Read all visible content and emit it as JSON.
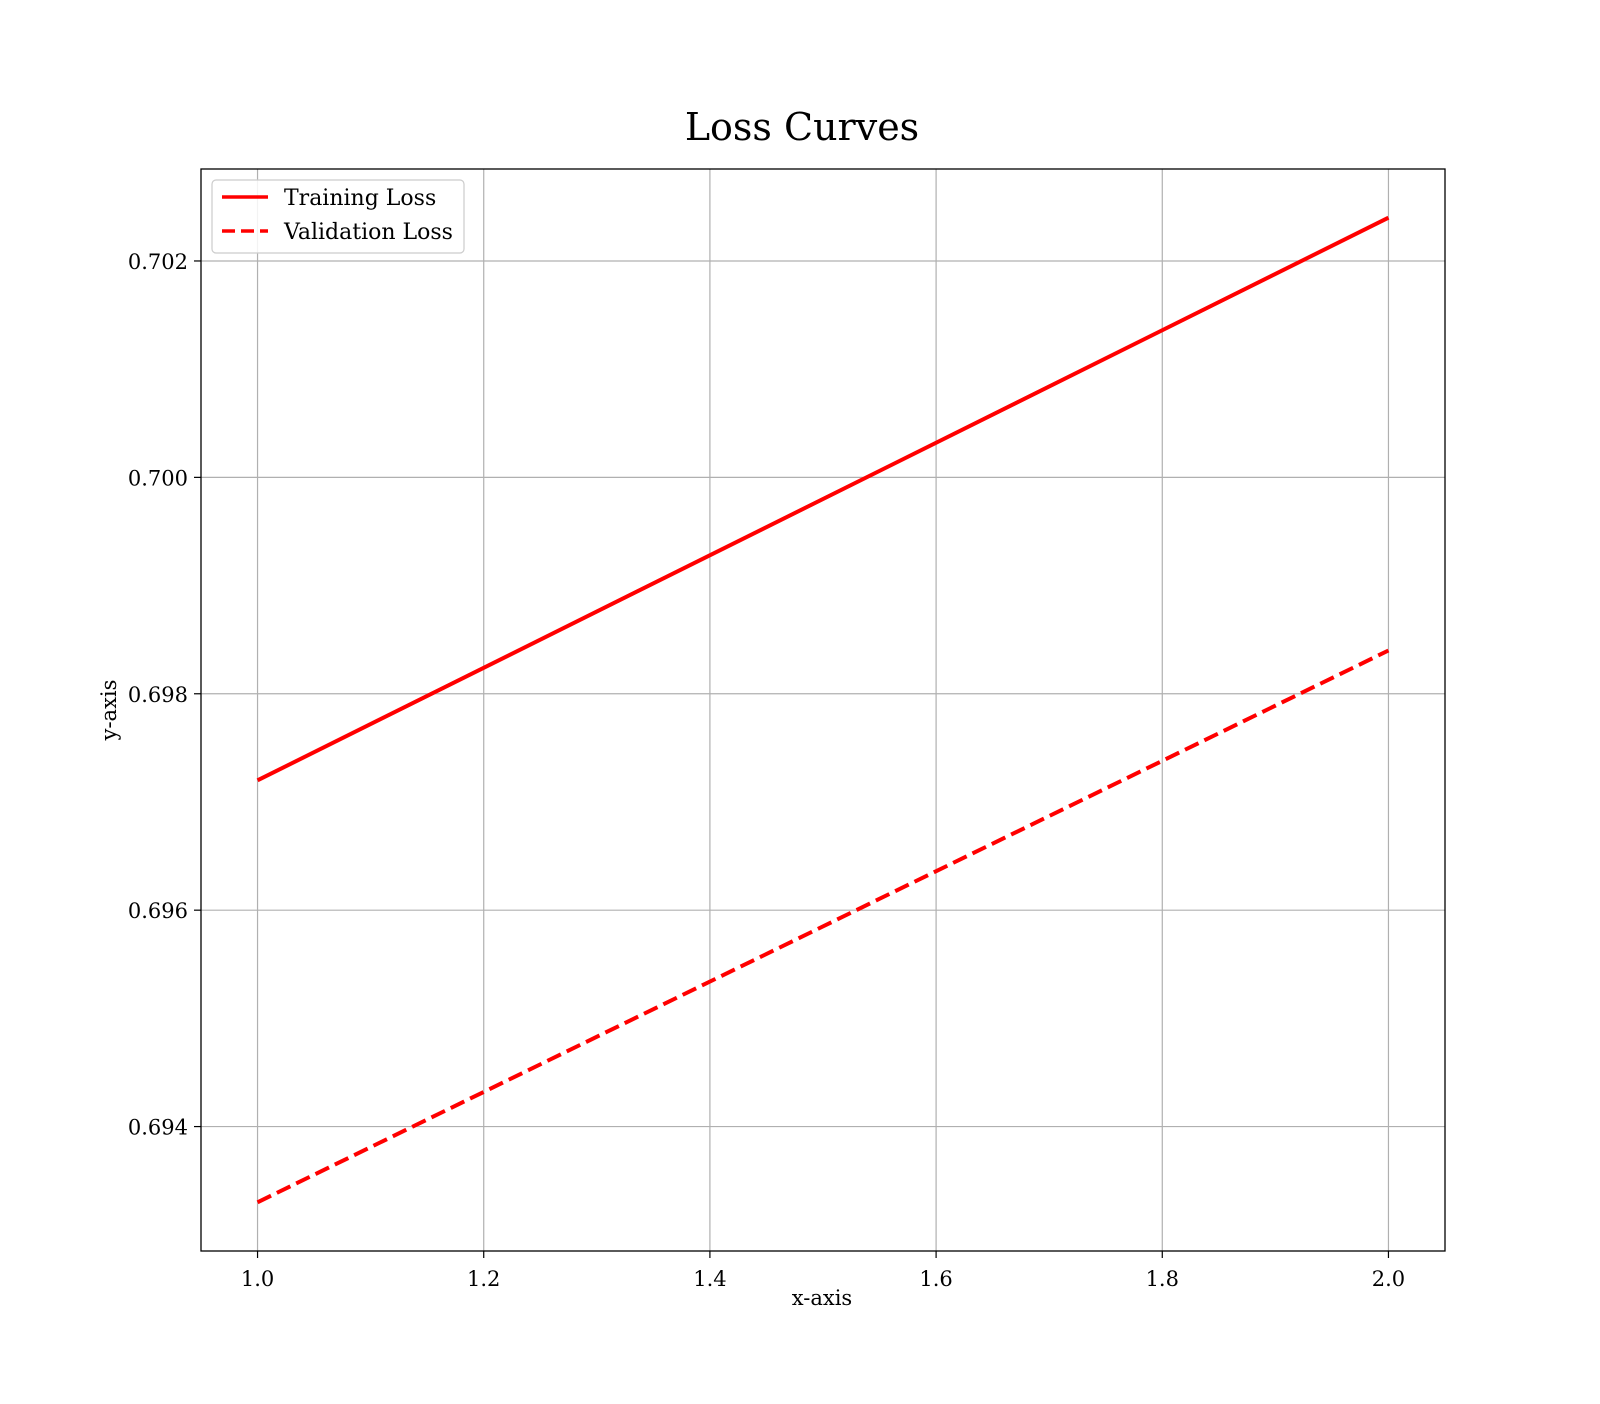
{
  "chart_data": {
    "type": "line",
    "title": "Loss Curves",
    "xlabel": "x-axis",
    "ylabel": "y-axis",
    "xlim": [
      0.95,
      2.05
    ],
    "ylim": [
      0.69285,
      0.70285
    ],
    "xticks": [
      1.0,
      1.2,
      1.4,
      1.6,
      1.8,
      2.0
    ],
    "xtick_labels": [
      "1.0",
      "1.2",
      "1.4",
      "1.6",
      "1.8",
      "2.0"
    ],
    "yticks": [
      0.694,
      0.696,
      0.698,
      0.7,
      0.702
    ],
    "ytick_labels": [
      "0.694",
      "0.696",
      "0.698",
      "0.700",
      "0.702"
    ],
    "grid": true,
    "legend_position": "top-left",
    "x": [
      1.0,
      2.0
    ],
    "series": [
      {
        "name": "Training Loss",
        "values": [
          0.6972,
          0.7024
        ],
        "color": "#ff0000",
        "style": "solid"
      },
      {
        "name": "Validation Loss",
        "values": [
          0.6933,
          0.6984
        ],
        "color": "#ff0000",
        "style": "dashed"
      }
    ]
  }
}
